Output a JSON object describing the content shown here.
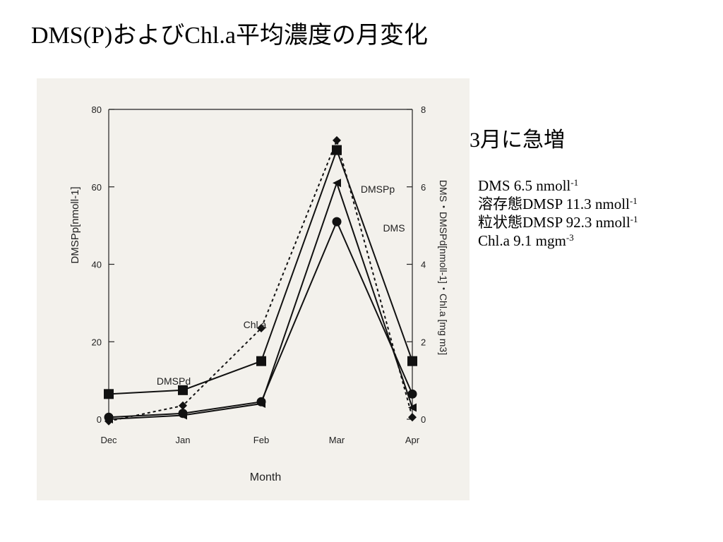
{
  "slide": {
    "title": "DMS(P)およびChl.a平均濃度の月変化",
    "headline": "3月に急増",
    "stats": [
      {
        "label": "DMS 6.5 nmoll",
        "sup": "-1"
      },
      {
        "label": "溶存態DMSP 11.3 nmoll",
        "sup": "-1"
      },
      {
        "label": "粒状態DMSP 92.3 nmoll",
        "sup": "-1"
      },
      {
        "label": "Chl.a 9.1 mgm",
        "sup": "-3"
      }
    ]
  },
  "chart_data": {
    "type": "line",
    "xlabel": "Month",
    "ylabel_left": "DMSPp[nmoll-1]",
    "ylabel_right": "DMS・DMSPd[nmoll-1]・Chl.a [mg m3]",
    "categories": [
      "Dec",
      "Jan",
      "Feb",
      "Mar",
      "Apr"
    ],
    "ylim_left": [
      0,
      80
    ],
    "ylim_right": [
      0,
      8
    ],
    "yticks_left": [
      "0",
      "20",
      "40",
      "60",
      "80"
    ],
    "yticks_right": [
      "0",
      "2",
      "4",
      "6",
      "8"
    ],
    "series": [
      {
        "name": "DMSPp",
        "axis": "left",
        "values": [
          0,
          1,
          4,
          61,
          3
        ]
      },
      {
        "name": "DMS",
        "axis": "right",
        "values": [
          0.05,
          0.15,
          0.45,
          5.1,
          0.65
        ]
      },
      {
        "name": "DMSPd",
        "axis": "right",
        "values": [
          0.65,
          0.75,
          1.5,
          6.95,
          1.5
        ]
      },
      {
        "name": "Chl.a",
        "axis": "right",
        "values": [
          -0.05,
          0.35,
          2.35,
          7.2,
          0.05
        ]
      }
    ]
  }
}
